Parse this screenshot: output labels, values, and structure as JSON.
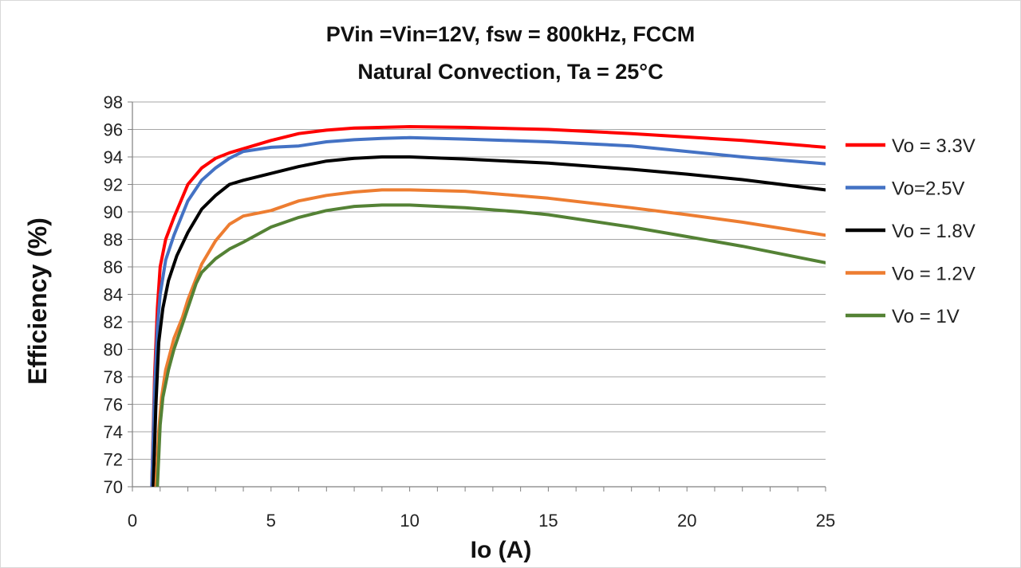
{
  "chart_data": {
    "type": "line",
    "title_line1": "PVin =Vin=12V, fsw = 800kHz, FCCM",
    "title_line2": "Natural  Convection, Ta = 25°C",
    "xlabel": "Io (A)",
    "ylabel": "Efficiency (%)",
    "xlim": [
      0,
      25
    ],
    "ylim": [
      70,
      98
    ],
    "xticks": [
      0,
      5,
      10,
      15,
      20,
      25
    ],
    "yticks": [
      70,
      72,
      74,
      76,
      78,
      80,
      82,
      84,
      86,
      88,
      90,
      92,
      94,
      96,
      98
    ],
    "grid": "horizontal",
    "legend_position": "right",
    "series": [
      {
        "name": "Vo = 3.3V",
        "color": "#ff0000",
        "points": [
          [
            0.7,
            70
          ],
          [
            0.8,
            78
          ],
          [
            0.9,
            83
          ],
          [
            1.0,
            86
          ],
          [
            1.2,
            88
          ],
          [
            1.5,
            89.6
          ],
          [
            2.0,
            92
          ],
          [
            2.5,
            93.2
          ],
          [
            3.0,
            93.9
          ],
          [
            3.5,
            94.3
          ],
          [
            4,
            94.6
          ],
          [
            5,
            95.2
          ],
          [
            6,
            95.7
          ],
          [
            7,
            95.95
          ],
          [
            8,
            96.1
          ],
          [
            9,
            96.15
          ],
          [
            10,
            96.2
          ],
          [
            12,
            96.15
          ],
          [
            15,
            96.0
          ],
          [
            18,
            95.7
          ],
          [
            20,
            95.45
          ],
          [
            22,
            95.2
          ],
          [
            25,
            94.7
          ]
        ]
      },
      {
        "name": "Vo=2.5V",
        "color": "#4472c4",
        "points": [
          [
            0.7,
            70
          ],
          [
            0.8,
            77
          ],
          [
            0.9,
            81.5
          ],
          [
            1.0,
            84
          ],
          [
            1.2,
            86.5
          ],
          [
            1.5,
            88.3
          ],
          [
            2.0,
            90.8
          ],
          [
            2.5,
            92.3
          ],
          [
            3.0,
            93.2
          ],
          [
            3.5,
            93.9
          ],
          [
            4,
            94.4
          ],
          [
            5,
            94.7
          ],
          [
            6,
            94.8
          ],
          [
            7,
            95.1
          ],
          [
            8,
            95.25
          ],
          [
            9,
            95.35
          ],
          [
            10,
            95.4
          ],
          [
            12,
            95.3
          ],
          [
            15,
            95.1
          ],
          [
            18,
            94.8
          ],
          [
            20,
            94.4
          ],
          [
            22,
            94.0
          ],
          [
            25,
            93.5
          ]
        ]
      },
      {
        "name": "Vo = 1.8V",
        "color": "#000000",
        "points": [
          [
            0.75,
            70
          ],
          [
            0.85,
            76
          ],
          [
            0.95,
            80.5
          ],
          [
            1.1,
            83
          ],
          [
            1.3,
            85
          ],
          [
            1.6,
            86.8
          ],
          [
            2.0,
            88.5
          ],
          [
            2.5,
            90.2
          ],
          [
            3.0,
            91.2
          ],
          [
            3.5,
            92.0
          ],
          [
            4,
            92.3
          ],
          [
            5,
            92.8
          ],
          [
            6,
            93.3
          ],
          [
            7,
            93.7
          ],
          [
            8,
            93.9
          ],
          [
            9,
            94.0
          ],
          [
            10,
            94.0
          ],
          [
            12,
            93.85
          ],
          [
            15,
            93.55
          ],
          [
            18,
            93.1
          ],
          [
            20,
            92.75
          ],
          [
            22,
            92.35
          ],
          [
            25,
            91.6
          ]
        ]
      },
      {
        "name": "Vo = 1.2V",
        "color": "#ed7d31",
        "points": [
          [
            0.85,
            70
          ],
          [
            0.95,
            74
          ],
          [
            1.05,
            76.5
          ],
          [
            1.2,
            78.5
          ],
          [
            1.5,
            80.8
          ],
          [
            1.8,
            82.3
          ],
          [
            2.0,
            83.6
          ],
          [
            2.5,
            86.2
          ],
          [
            3.0,
            87.9
          ],
          [
            3.5,
            89.1
          ],
          [
            4,
            89.7
          ],
          [
            5,
            90.1
          ],
          [
            6,
            90.8
          ],
          [
            7,
            91.2
          ],
          [
            8,
            91.45
          ],
          [
            9,
            91.6
          ],
          [
            10,
            91.6
          ],
          [
            12,
            91.5
          ],
          [
            15,
            91.0
          ],
          [
            18,
            90.3
          ],
          [
            20,
            89.8
          ],
          [
            22,
            89.25
          ],
          [
            25,
            88.3
          ]
        ]
      },
      {
        "name": "Vo = 1V",
        "color": "#548235",
        "points": [
          [
            0.9,
            70
          ],
          [
            1.0,
            74.5
          ],
          [
            1.1,
            76.5
          ],
          [
            1.3,
            78.5
          ],
          [
            1.5,
            80
          ],
          [
            1.8,
            81.8
          ],
          [
            2.0,
            83
          ],
          [
            2.3,
            84.8
          ],
          [
            2.5,
            85.6
          ],
          [
            3.0,
            86.6
          ],
          [
            3.5,
            87.3
          ],
          [
            4,
            87.8
          ],
          [
            5,
            88.9
          ],
          [
            6,
            89.6
          ],
          [
            7,
            90.1
          ],
          [
            8,
            90.4
          ],
          [
            9,
            90.5
          ],
          [
            10,
            90.5
          ],
          [
            12,
            90.3
          ],
          [
            14,
            90.0
          ],
          [
            15,
            89.8
          ],
          [
            18,
            88.9
          ],
          [
            20,
            88.2
          ],
          [
            22,
            87.5
          ],
          [
            25,
            86.3
          ]
        ]
      }
    ]
  }
}
